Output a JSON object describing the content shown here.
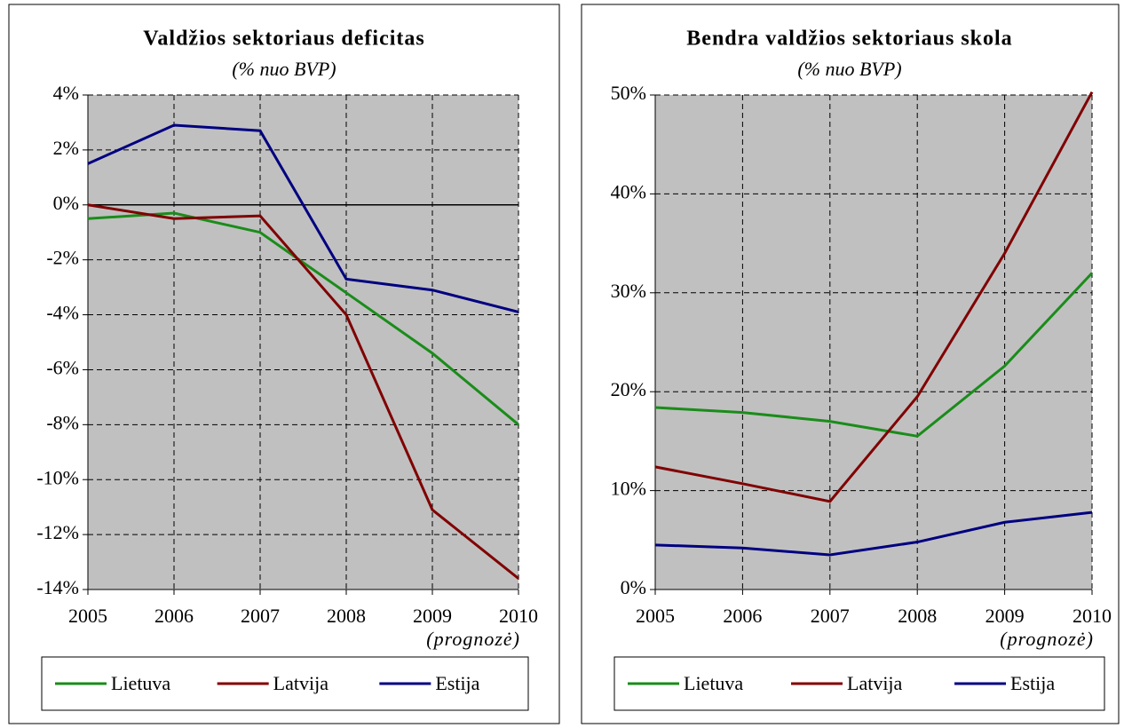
{
  "chart_data": [
    {
      "type": "line",
      "title": "Valdžios sektoriaus deficitas",
      "subtitle": "(% nuo BVP)",
      "x": [
        2005,
        2006,
        2007,
        2008,
        2009,
        2010
      ],
      "xlim": [
        2005,
        2010
      ],
      "xticks": [
        2005,
        2006,
        2007,
        2008,
        2009,
        2010
      ],
      "x_annotation": "(prognozė)",
      "ylim": [
        -14,
        4
      ],
      "yticks": [
        {
          "value": -14,
          "label": "-14%"
        },
        {
          "value": -12,
          "label": "-12%"
        },
        {
          "value": -10,
          "label": "-10%"
        },
        {
          "value": -8,
          "label": "-8%"
        },
        {
          "value": -6,
          "label": "-6%"
        },
        {
          "value": -4,
          "label": "-4%"
        },
        {
          "value": -2,
          "label": "-2%"
        },
        {
          "value": 0,
          "label": "0%"
        },
        {
          "value": 2,
          "label": "2%"
        },
        {
          "value": 4,
          "label": "4%"
        }
      ],
      "grid": true,
      "series": [
        {
          "name": "Lietuva",
          "color": "#1a8c1a",
          "values": [
            -0.5,
            -0.3,
            -1.0,
            -3.2,
            -5.4,
            -8.0
          ]
        },
        {
          "name": "Latvija",
          "color": "#800000",
          "values": [
            0.0,
            -0.5,
            -0.4,
            -4.0,
            -11.1,
            -13.6
          ]
        },
        {
          "name": "Estija",
          "color": "#000080",
          "values": [
            1.5,
            2.9,
            2.7,
            -2.7,
            -3.1,
            -3.9
          ]
        }
      ]
    },
    {
      "type": "line",
      "title": "Bendra valdžios sektoriaus skola",
      "subtitle": "(% nuo BVP)",
      "x": [
        2005,
        2006,
        2007,
        2008,
        2009,
        2010
      ],
      "xlim": [
        2005,
        2010
      ],
      "xticks": [
        2005,
        2006,
        2007,
        2008,
        2009,
        2010
      ],
      "x_annotation": "(prognozė)",
      "ylim": [
        0,
        50
      ],
      "yticks": [
        {
          "value": 0,
          "label": "0%"
        },
        {
          "value": 10,
          "label": "10%"
        },
        {
          "value": 20,
          "label": "20%"
        },
        {
          "value": 30,
          "label": "30%"
        },
        {
          "value": 40,
          "label": "40%"
        },
        {
          "value": 50,
          "label": "50%"
        }
      ],
      "grid": true,
      "series": [
        {
          "name": "Lietuva",
          "color": "#1a8c1a",
          "values": [
            18.4,
            17.9,
            17.0,
            15.5,
            22.6,
            32.0
          ]
        },
        {
          "name": "Latvija",
          "color": "#800000",
          "values": [
            12.4,
            10.7,
            8.9,
            19.5,
            34.0,
            50.3
          ]
        },
        {
          "name": "Estija",
          "color": "#000080",
          "values": [
            4.5,
            4.2,
            3.5,
            4.8,
            6.8,
            7.8
          ]
        }
      ]
    }
  ]
}
